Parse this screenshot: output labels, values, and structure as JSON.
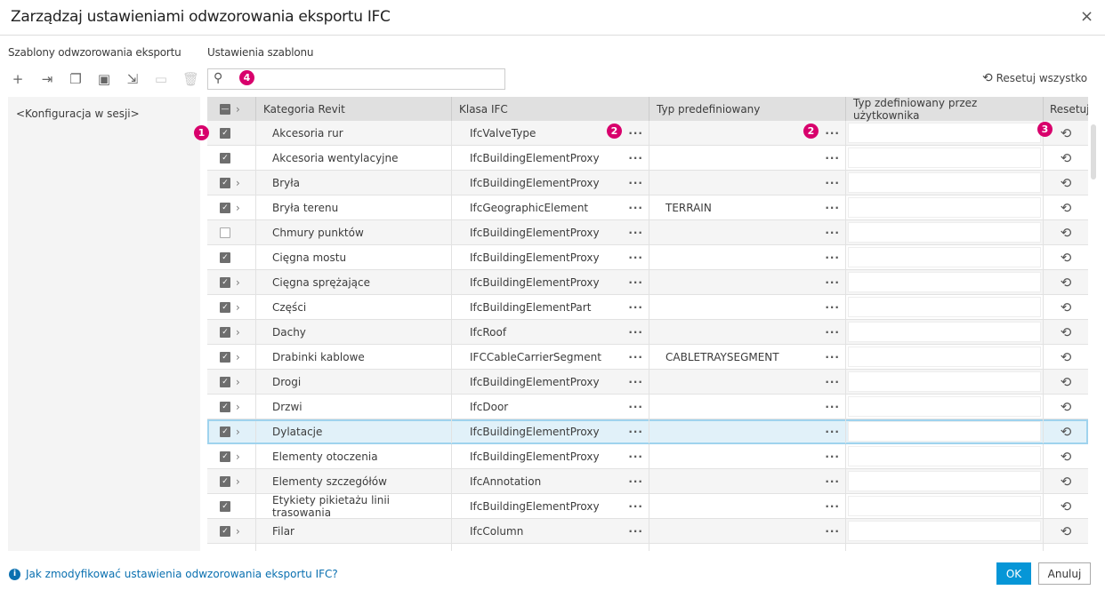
{
  "window": {
    "title": "Zarządzaj ustawieniami odwzorowania eksportu IFC",
    "close_icon": "×"
  },
  "left": {
    "label": "Szablony odwzorowania eksportu",
    "items": [
      "<Konfiguracja w sesji>"
    ],
    "toolbar": [
      {
        "icon": "plus-icon",
        "glyph": "+",
        "enabled": true
      },
      {
        "icon": "import-icon",
        "glyph": "⇥",
        "enabled": true
      },
      {
        "icon": "copy-icon",
        "glyph": "❐",
        "enabled": true
      },
      {
        "icon": "save-icon",
        "glyph": "▣",
        "enabled": true
      },
      {
        "icon": "export-icon",
        "glyph": "⇲",
        "enabled": true
      },
      {
        "icon": "rename-icon",
        "glyph": "▭",
        "enabled": false
      },
      {
        "icon": "trash-icon",
        "glyph": "🗑",
        "enabled": false
      }
    ]
  },
  "settings": {
    "label": "Ustawienia szablonu",
    "search_placeholder": "",
    "reset_all": "Resetuj wszystko"
  },
  "table": {
    "headers": [
      "Kategoria Revit",
      "Klasa IFC",
      "Typ predefiniowany",
      "Typ zdefiniowany przez użytkownika",
      "Resetuj"
    ],
    "rows": [
      {
        "checked": true,
        "expand": false,
        "category": "Akcesoria rur",
        "ifc": "IfcValveType",
        "predef": ""
      },
      {
        "checked": true,
        "expand": false,
        "category": "Akcesoria wentylacyjne",
        "ifc": "IfcBuildingElementProxy",
        "predef": ""
      },
      {
        "checked": true,
        "expand": true,
        "category": "Bryła",
        "ifc": "IfcBuildingElementProxy",
        "predef": ""
      },
      {
        "checked": true,
        "expand": true,
        "category": "Bryła terenu",
        "ifc": "IfcGeographicElement",
        "predef": "TERRAIN"
      },
      {
        "checked": false,
        "expand": false,
        "category": "Chmury punktów",
        "ifc": "IfcBuildingElementProxy",
        "predef": ""
      },
      {
        "checked": true,
        "expand": false,
        "category": "Cięgna mostu",
        "ifc": "IfcBuildingElementProxy",
        "predef": ""
      },
      {
        "checked": true,
        "expand": true,
        "category": "Cięgna sprężające",
        "ifc": "IfcBuildingElementProxy",
        "predef": ""
      },
      {
        "checked": true,
        "expand": true,
        "category": "Części",
        "ifc": "IfcBuildingElementPart",
        "predef": ""
      },
      {
        "checked": true,
        "expand": true,
        "category": "Dachy",
        "ifc": "IfcRoof",
        "predef": ""
      },
      {
        "checked": true,
        "expand": true,
        "category": "Drabinki kablowe",
        "ifc": "IFCCableCarrierSegment",
        "predef": "CABLETRAYSEGMENT"
      },
      {
        "checked": true,
        "expand": true,
        "category": "Drogi",
        "ifc": "IfcBuildingElementProxy",
        "predef": ""
      },
      {
        "checked": true,
        "expand": true,
        "category": "Drzwi",
        "ifc": "IfcDoor",
        "predef": ""
      },
      {
        "checked": true,
        "expand": true,
        "category": "Dylatacje",
        "ifc": "IfcBuildingElementProxy",
        "predef": "",
        "selected": true
      },
      {
        "checked": true,
        "expand": true,
        "category": "Elementy otoczenia",
        "ifc": "IfcBuildingElementProxy",
        "predef": ""
      },
      {
        "checked": true,
        "expand": true,
        "category": "Elementy szczegółów",
        "ifc": "IfcAnnotation",
        "predef": ""
      },
      {
        "checked": true,
        "expand": false,
        "category": "Etykiety pikietażu linii trasowania",
        "ifc": "IfcBuildingElementProxy",
        "predef": ""
      },
      {
        "checked": true,
        "expand": true,
        "category": "Filar",
        "ifc": "IfcColumn",
        "predef": ""
      }
    ]
  },
  "callouts": [
    "1",
    "2",
    "2",
    "3",
    "4"
  ],
  "footer": {
    "help_link": "Jak zmodyfikować ustawienia odwzorowania eksportu IFC?",
    "ok": "OK",
    "cancel": "Anuluj"
  },
  "colors": {
    "accent": "#0696d7",
    "callout": "#d8006c",
    "selected_row": "#e1f1f9"
  }
}
